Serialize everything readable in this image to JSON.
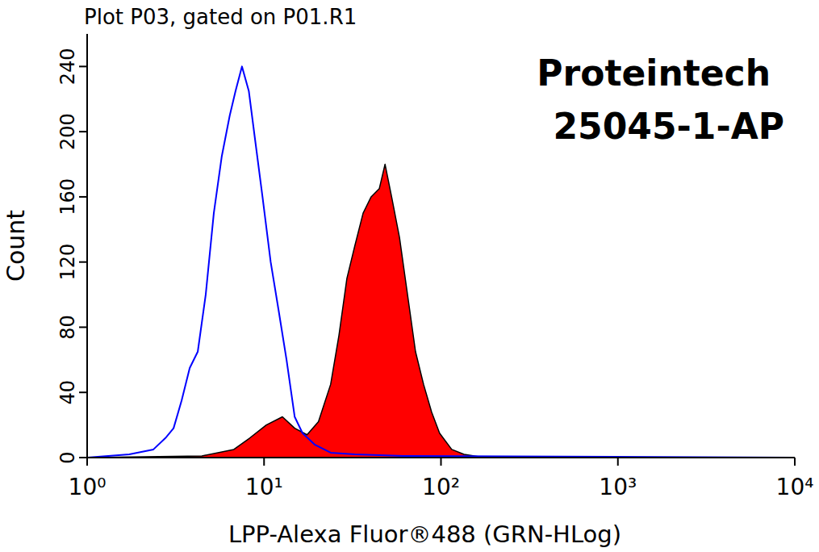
{
  "chart_data": {
    "type": "line",
    "title": "Plot P03, gated on P01.R1",
    "annotations": [
      "Proteintech",
      "25045-1-AP"
    ],
    "x_label": "LPP-Alexa Fluor®488 (GRN-HLog)",
    "y_label": "Count",
    "log": "x",
    "grid": false,
    "xlim": [
      1,
      10000
    ],
    "xticks": [
      {
        "value": 1,
        "label": "10⁰"
      },
      {
        "value": 10,
        "label": "10¹"
      },
      {
        "value": 100,
        "label": "10²"
      },
      {
        "value": 1000,
        "label": "10³"
      },
      {
        "value": 10000,
        "label": "10⁴"
      }
    ],
    "ylim": [
      0,
      260
    ],
    "yticks": [
      0,
      40,
      80,
      120,
      160,
      200,
      240
    ],
    "series": [
      {
        "type": "line",
        "color": "#0000ff",
        "x": [
          1,
          1.73,
          2.37,
          2.77,
          3.08,
          3.42,
          3.8,
          4.22,
          4.68,
          5.2,
          5.77,
          6.4,
          6.9,
          7.5,
          8.2,
          8.9,
          9.8,
          10.9,
          12.1,
          13.4,
          14.9,
          16.5,
          19.3,
          23.8,
          32.6,
          61.5,
          10000
        ],
        "values": [
          0,
          2,
          5,
          12,
          18,
          35,
          55,
          65,
          100,
          150,
          185,
          210,
          225,
          240,
          225,
          195,
          160,
          120,
          90,
          60,
          25,
          15,
          8,
          3,
          2,
          1,
          0
        ]
      },
      {
        "type": "area",
        "color": "#ff0000",
        "x": [
          1,
          4.45,
          6.75,
          8.3,
          10.3,
          12.7,
          14.9,
          17.5,
          20.3,
          23.8,
          26.5,
          29.4,
          32.6,
          36.3,
          40.3,
          44.8,
          48.3,
          52.6,
          58.3,
          64.7,
          71.8,
          79.7,
          88.5,
          98.2,
          115,
          135,
          176,
          10000
        ],
        "values": [
          0,
          1,
          5,
          12,
          20,
          25,
          18,
          14,
          22,
          45,
          75,
          110,
          130,
          150,
          160,
          165,
          180,
          160,
          135,
          100,
          65,
          45,
          28,
          15,
          5,
          2,
          0,
          0
        ]
      }
    ]
  }
}
